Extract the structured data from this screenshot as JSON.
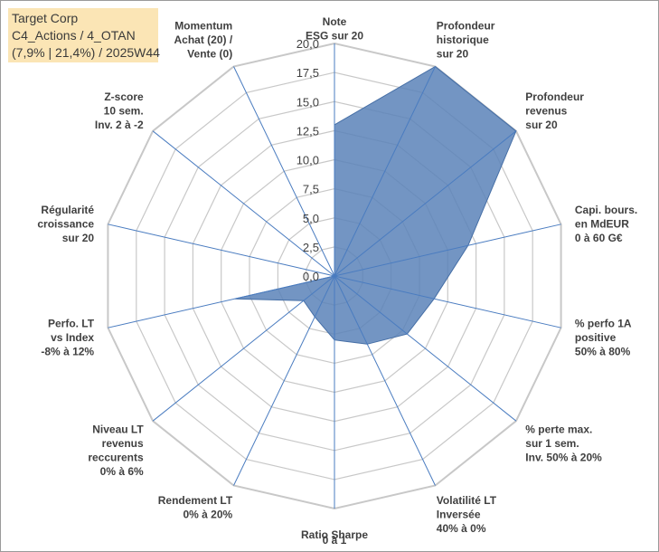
{
  "header": {
    "line1": "Target Corp",
    "line2": "C4_Actions / 4_OTAN",
    "line3": "(7,9% | 21,4%) / 2025W44"
  },
  "chart_data": {
    "type": "radar",
    "rmax": 20,
    "ticks": [
      "0,0",
      "2,5",
      "5,0",
      "7,5",
      "10,0",
      "12,5",
      "15,0",
      "17,5",
      "20,0"
    ],
    "axes": [
      {
        "lines": [
          "Note",
          "ESG sur 20"
        ],
        "value": 13
      },
      {
        "lines": [
          "Profondeur",
          "historique",
          "sur 20"
        ],
        "value": 20
      },
      {
        "lines": [
          "Profondeur",
          "revenus",
          "sur 20"
        ],
        "value": 20
      },
      {
        "lines": [
          "Capi. bours.",
          "en MdEUR",
          "0 à 60 G€"
        ],
        "value": 11.8
      },
      {
        "lines": [
          "% perfo 1A",
          "positive",
          "50% à 80%"
        ],
        "value": 8.8
      },
      {
        "lines": [
          "% perte max.",
          "sur 1 sem.",
          "Inv. 50% à 20%"
        ],
        "value": 8
      },
      {
        "lines": [
          "Volatilité LT",
          "Inversée",
          "40% à 0%"
        ],
        "value": 6.5
      },
      {
        "lines": [
          "Ratio Sharpe",
          "0 à 1"
        ],
        "value": 5.5
      },
      {
        "lines": [
          "Rendement LT",
          "0% à 20%"
        ],
        "value": 3.9
      },
      {
        "lines": [
          "Niveau LT",
          "revenus",
          "reccurents",
          "0% à 6%"
        ],
        "value": 3.4
      },
      {
        "lines": [
          "Perfo. LT",
          "vs Index",
          "-8% à 12%"
        ],
        "value": 8.8
      },
      {
        "lines": [
          "Régularité",
          "croissance",
          "sur 20"
        ],
        "value": 0
      },
      {
        "lines": [
          "Z-score",
          "10 sem.",
          "Inv. 2 à -2"
        ],
        "value": 0
      },
      {
        "lines": [
          "Momentum",
          "Achat (20) /",
          "Vente (0)"
        ],
        "value": 0
      }
    ],
    "colors": {
      "fill": "#5b82b8",
      "stroke": "#466fa6",
      "grid": "#c8c8c8",
      "spoke": "#4a7cc0"
    }
  }
}
